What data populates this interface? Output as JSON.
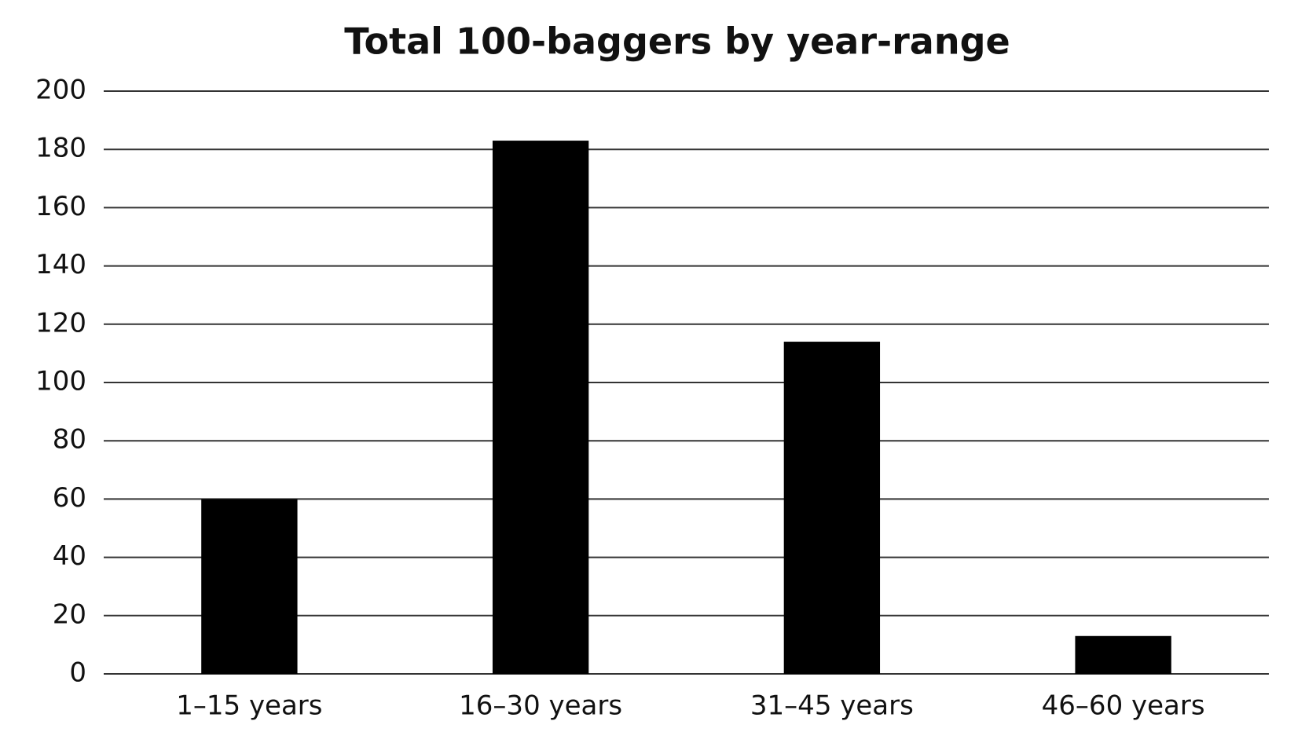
{
  "chart_data": {
    "type": "bar",
    "title": "Total 100-baggers by year-range",
    "categories": [
      "1–15 years",
      "16–30 years",
      "31–45 years",
      "46–60 years"
    ],
    "values": [
      60,
      183,
      114,
      13
    ],
    "color": "#000000",
    "ylim": [
      0,
      200
    ],
    "yticks": [
      0,
      20,
      40,
      60,
      80,
      100,
      120,
      140,
      160,
      180,
      200
    ],
    "grid": true
  }
}
